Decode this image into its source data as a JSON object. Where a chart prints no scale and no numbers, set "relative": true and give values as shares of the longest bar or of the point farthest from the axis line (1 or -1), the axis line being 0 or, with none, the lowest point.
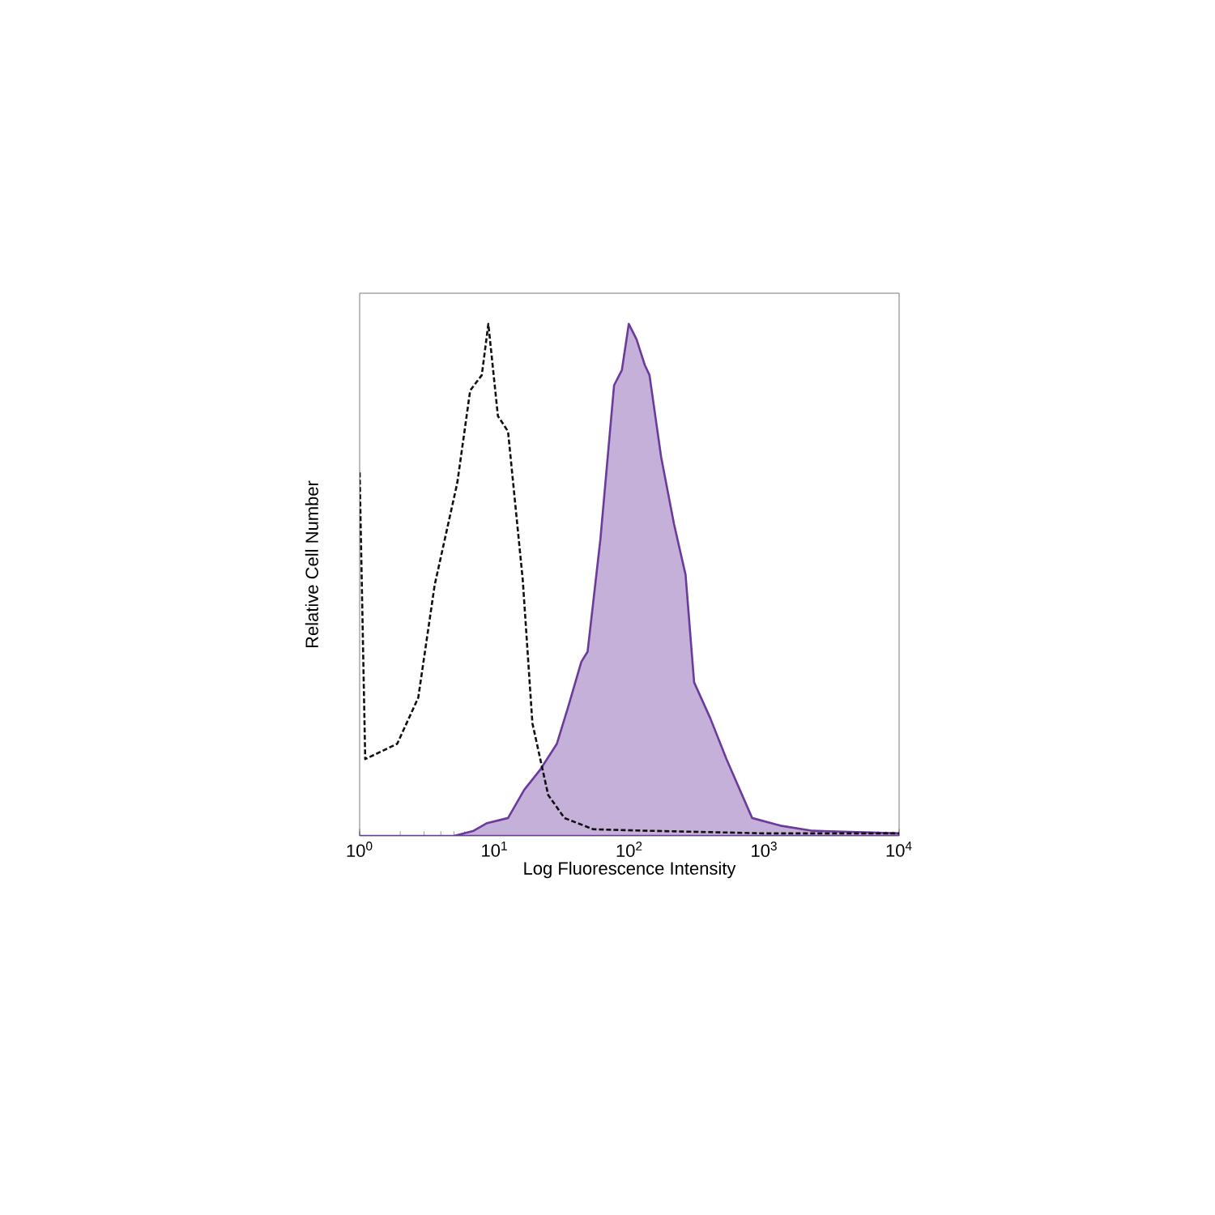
{
  "chart_data": {
    "type": "area",
    "relative": true,
    "log": "x",
    "xlabel": "Log Fluorescence Intensity",
    "ylabel": "Relative Cell Number",
    "xlim": [
      1,
      10000
    ],
    "xticks": [
      {
        "value": 1,
        "label": "10$^{0}$"
      },
      {
        "value": 10,
        "label": "10$^{1}$"
      },
      {
        "value": 100,
        "label": "10$^{2}$"
      },
      {
        "value": 1000,
        "label": "10$^{3}$"
      },
      {
        "value": 10000,
        "label": "10$^{4}$"
      }
    ],
    "grid": false,
    "series": [
      {
        "type": "line",
        "line_style": "dashed",
        "color": "#111111",
        "x": [
          1,
          1.1,
          1.9,
          2.72,
          3.6,
          5.3,
          6.6,
          8.05,
          9.0,
          10.6,
          12.6,
          16.2,
          19.1,
          25,
          33,
          54,
          141,
          1000,
          10000
        ],
        "values": [
          0.71,
          0.15,
          0.18,
          0.27,
          0.49,
          0.69,
          0.87,
          0.9,
          1.0,
          0.82,
          0.79,
          0.5,
          0.22,
          0.08,
          0.035,
          0.013,
          0.01,
          0.005,
          0.005
        ]
      },
      {
        "line_style": "solid",
        "color": "#c4b0d8",
        "x": [
          1,
          5,
          7,
          8.8,
          12.6,
          16.6,
          21.9,
          29,
          35,
          44,
          49,
          61,
          77,
          88,
          99,
          113,
          130,
          141,
          172,
          214,
          261,
          302,
          398,
          525,
          813,
          1320,
          2290,
          10000
        ],
        "values": [
          0,
          0,
          0.01,
          0.025,
          0.035,
          0.09,
          0.13,
          0.18,
          0.25,
          0.34,
          0.36,
          0.58,
          0.88,
          0.91,
          1.0,
          0.97,
          0.92,
          0.9,
          0.74,
          0.61,
          0.51,
          0.3,
          0.23,
          0.15,
          0.035,
          0.02,
          0.01,
          0.005
        ]
      }
    ]
  }
}
